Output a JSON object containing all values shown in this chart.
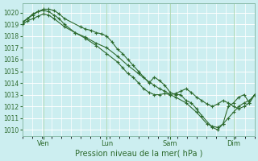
{
  "xlabel": "Pression niveau de la mer( hPa )",
  "bg_color": "#cceef0",
  "grid_color": "#ffffff",
  "line_color": "#2d6a2d",
  "marker_color": "#2d6a2d",
  "ylim": [
    1009.5,
    1020.8
  ],
  "yticks": [
    1010,
    1011,
    1012,
    1013,
    1014,
    1015,
    1016,
    1017,
    1018,
    1019,
    1020
  ],
  "xtick_labels": [
    "Ven",
    "Lun",
    "Sam",
    "Dim"
  ],
  "xtick_positions": [
    24,
    96,
    168,
    240
  ],
  "xlim": [
    0,
    264
  ],
  "num_x_gridlines": 24,
  "series1_x": [
    0,
    6,
    12,
    18,
    24,
    30,
    36,
    42,
    48,
    66,
    72,
    78,
    84,
    90,
    96,
    102,
    108,
    114,
    120,
    126,
    132,
    138,
    144,
    150,
    156,
    162,
    168,
    174,
    180,
    186,
    192,
    198,
    204,
    216,
    222,
    228,
    234,
    240,
    246,
    252,
    258,
    264
  ],
  "series1_y": [
    1019.2,
    1019.5,
    1019.8,
    1020.1,
    1020.3,
    1020.3,
    1020.2,
    1019.9,
    1019.5,
    1018.8,
    1018.6,
    1018.5,
    1018.3,
    1018.2,
    1018.0,
    1017.5,
    1016.9,
    1016.5,
    1016.0,
    1015.5,
    1015.0,
    1014.5,
    1014.0,
    1014.5,
    1014.2,
    1013.8,
    1013.2,
    1013.0,
    1013.0,
    1012.5,
    1012.3,
    1011.8,
    1011.2,
    1010.2,
    1010.0,
    1010.5,
    1012.0,
    1012.3,
    1012.8,
    1013.0,
    1012.3,
    1013.0
  ],
  "series2_x": [
    0,
    6,
    12,
    18,
    24,
    30,
    36,
    48,
    60,
    72,
    84,
    96,
    108,
    120,
    132,
    144,
    150,
    156,
    162,
    168,
    174,
    180,
    186,
    192,
    198,
    204,
    210,
    216,
    222,
    228,
    234,
    240,
    246,
    252,
    258,
    264
  ],
  "series2_y": [
    1019.0,
    1019.3,
    1019.5,
    1019.7,
    1019.9,
    1019.8,
    1019.5,
    1018.8,
    1018.3,
    1017.9,
    1017.4,
    1017.0,
    1016.3,
    1015.5,
    1014.8,
    1014.1,
    1013.8,
    1013.5,
    1013.3,
    1013.0,
    1013.1,
    1013.3,
    1013.5,
    1013.2,
    1012.8,
    1012.5,
    1012.2,
    1012.0,
    1012.2,
    1012.5,
    1012.3,
    1012.0,
    1011.8,
    1012.0,
    1012.3,
    1013.0
  ],
  "series3_x": [
    0,
    6,
    12,
    18,
    24,
    30,
    36,
    42,
    48,
    60,
    72,
    84,
    96,
    108,
    114,
    120,
    126,
    132,
    138,
    144,
    150,
    156,
    162,
    168,
    174,
    186,
    198,
    210,
    216,
    222,
    228,
    234,
    240,
    246,
    252,
    258,
    264
  ],
  "series3_y": [
    1019.1,
    1019.5,
    1019.9,
    1020.1,
    1020.2,
    1020.1,
    1019.8,
    1019.5,
    1019.0,
    1018.3,
    1017.8,
    1017.2,
    1016.5,
    1015.8,
    1015.3,
    1014.8,
    1014.5,
    1014.0,
    1013.5,
    1013.2,
    1013.0,
    1013.0,
    1013.1,
    1013.0,
    1012.8,
    1012.3,
    1011.5,
    1010.5,
    1010.3,
    1010.2,
    1010.5,
    1011.0,
    1011.5,
    1012.0,
    1012.3,
    1012.5,
    1013.0
  ]
}
